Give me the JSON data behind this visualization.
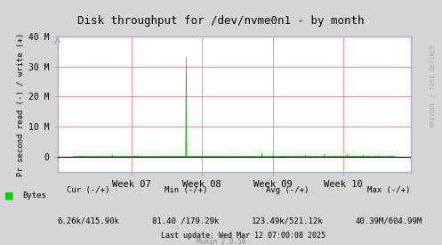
{
  "title": "Disk throughput for /dev/nvme0n1 - by month",
  "ylabel": "Pr second read (-) / write (+)",
  "background_color": "#d5d5d5",
  "plot_bg_color": "#ffffff",
  "grid_color": "#ff9999",
  "border_color": "#aaaaaa",
  "line_color": "#00cc00",
  "shadow_color": "#006600",
  "text_color": "#000000",
  "light_blue_border": "#aaaacc",
  "xlabel_ticks": [
    "Week 07",
    "Week 08",
    "Week 09",
    "Week 10"
  ],
  "xlabel_tick_positions": [
    0.18,
    0.4,
    0.62,
    0.84
  ],
  "ylim": [
    -5000000,
    40000000
  ],
  "yticks": [
    0,
    10000000,
    20000000,
    30000000,
    40000000
  ],
  "ytick_labels": [
    "0",
    "10 M",
    "20 M",
    "30 M",
    "40 M"
  ],
  "legend_label": "Bytes",
  "footer_cur": "Cur (-/+)",
  "footer_cur_val": "6.26k/415.90k",
  "footer_min": "Min (-/+)",
  "footer_min_val": "81.40 /179.29k",
  "footer_avg": "Avg (-/+)",
  "footer_avg_val": "123.49k/521.12k",
  "footer_max": "Max (-/+)",
  "footer_max_val": "40.39M/604.99M",
  "footer_last_update": "Last update: Wed Mar 12 07:00:08 2025",
  "footer_munin": "Munin 2.0.56",
  "watermark": "RRDTOOL / TOBI OETIKER",
  "n_points": 600
}
